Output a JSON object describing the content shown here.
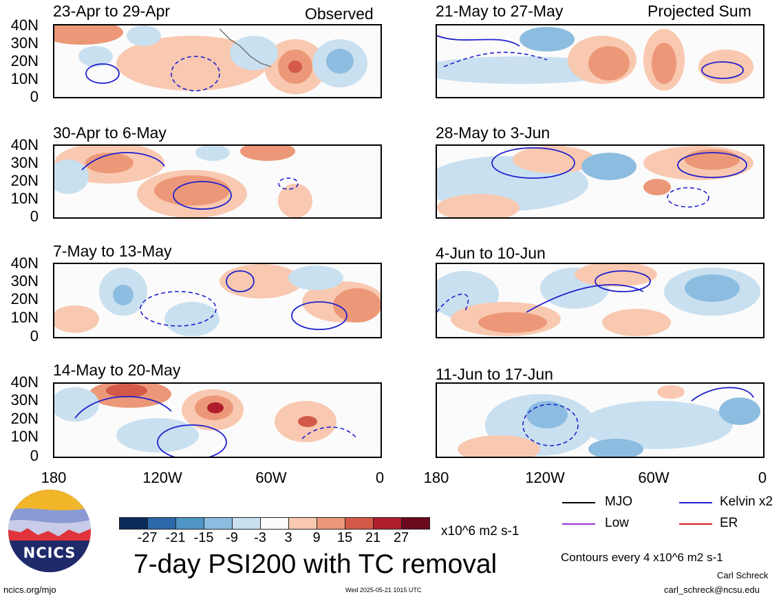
{
  "header": {
    "observed_label": "Observed",
    "projected_label": "Projected Sum"
  },
  "panels": {
    "left": [
      {
        "title": "23-Apr to 29-Apr"
      },
      {
        "title": "30-Apr to 6-May"
      },
      {
        "title": "7-May to 13-May"
      },
      {
        "title": "14-May to 20-May"
      }
    ],
    "right": [
      {
        "title": "21-May to 27-May"
      },
      {
        "title": "28-May to 3-Jun"
      },
      {
        "title": "4-Jun to 10-Jun"
      },
      {
        "title": "11-Jun to 17-Jun"
      }
    ]
  },
  "axes": {
    "lat_ticks": [
      "40N",
      "30N",
      "20N",
      "10N",
      "0"
    ],
    "lon_ticks": [
      "180",
      "120W",
      "60W",
      "0"
    ]
  },
  "colorbar": {
    "labels": [
      "-27",
      "-21",
      "-15",
      "-9",
      "-3",
      "3",
      "9",
      "15",
      "21",
      "27"
    ],
    "colors": [
      "#0b2a5a",
      "#2a68a8",
      "#4f95c6",
      "#8cbde0",
      "#c9e0f0",
      "#fbfbfb",
      "#f8c9b0",
      "#ec9878",
      "#d45a48",
      "#b01e2d",
      "#6b0a1f"
    ],
    "units": "x10^6 m2 s-1"
  },
  "main_title": "7-day PSI200 with TC removal",
  "legend": {
    "mjo": {
      "label": "MJO",
      "color": "#000000"
    },
    "low": {
      "label": "Low",
      "color": "#9b30d9"
    },
    "kelvin": {
      "label": "Kelvin x2",
      "color": "#1f1fcf"
    },
    "er": {
      "label": "ER",
      "color": "#d62020"
    },
    "contours_note": "Contours every 4 x10^6 m2 s-1"
  },
  "footer": {
    "logo_text": "NCICS",
    "url": "ncics.org/mjo",
    "timestamp": "Wed 2025-05-21 1015 UTC",
    "author": "Carl Schreck",
    "email": "carl_schreck@ncsu.edu"
  },
  "chart_data": {
    "type": "heatmap",
    "title": "7-day PSI200 with TC removal",
    "units": "x10^6 m2 s-1",
    "color_levels": [
      -27,
      -21,
      -15,
      -9,
      -3,
      3,
      9,
      15,
      21,
      27
    ],
    "lat_range": [
      "0",
      "40N"
    ],
    "lon_range": [
      "180",
      "0"
    ],
    "lat_ticks": [
      "40N",
      "30N",
      "20N",
      "10N",
      "0"
    ],
    "lon_ticks": [
      "180",
      "120W",
      "60W",
      "0"
    ],
    "contour_interval": 4,
    "contour_series": [
      "MJO",
      "Low",
      "Kelvin x2",
      "ER"
    ],
    "panels_observed": [
      "23-Apr to 29-Apr",
      "30-Apr to 6-May",
      "7-May to 13-May",
      "14-May to 20-May"
    ],
    "panels_projected": [
      "21-May to 27-May",
      "28-May to 3-Jun",
      "4-Jun to 10-Jun",
      "11-Jun to 17-Jun"
    ]
  }
}
